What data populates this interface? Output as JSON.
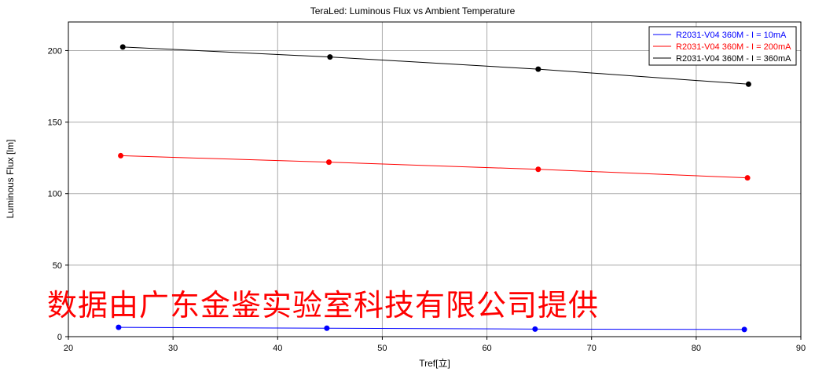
{
  "chart_data": {
    "type": "line",
    "title": "TeraLed: Luminous Flux vs Ambient Temperature",
    "xlabel": "Tref[立]",
    "ylabel": "Luminous Flux [lm]",
    "xlim": [
      20,
      90
    ],
    "ylim": [
      0,
      220
    ],
    "x_ticks": [
      20,
      30,
      40,
      50,
      60,
      70,
      80,
      90
    ],
    "y_ticks": [
      0,
      50,
      100,
      150,
      200
    ],
    "grid": true,
    "legend_position": "top-right",
    "series": [
      {
        "name": "R2031-V04 360M - I = 10mA",
        "color": "#0000ff",
        "x": [
          24.8,
          44.7,
          64.6,
          84.6
        ],
        "y": [
          6.5,
          5.9,
          5.3,
          5.0
        ]
      },
      {
        "name": "R2031-V04 360M - I = 200mA",
        "color": "#ff0000",
        "x": [
          25.0,
          44.9,
          64.9,
          84.9
        ],
        "y": [
          126.5,
          122.0,
          117.0,
          111.0
        ]
      },
      {
        "name": "R2031-V04 360M - I = 360mA",
        "color": "#000000",
        "x": [
          25.2,
          45.0,
          64.9,
          85.0
        ],
        "y": [
          202.5,
          195.5,
          187.0,
          176.5
        ]
      }
    ]
  },
  "watermark_text": "数据由广东金鉴实验室科技有限公司提供"
}
